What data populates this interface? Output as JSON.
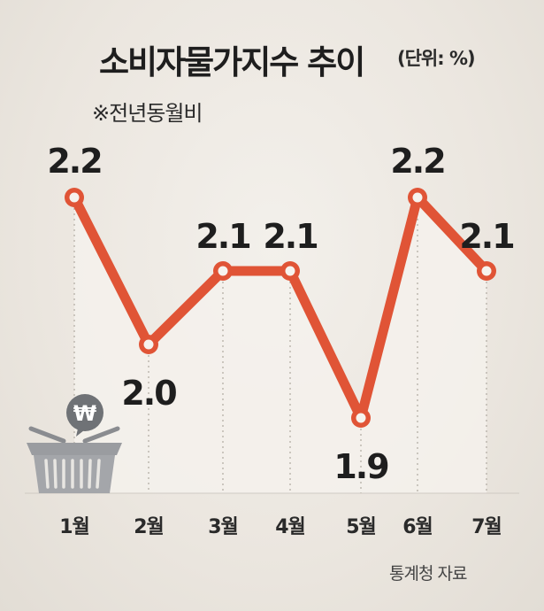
{
  "header": {
    "title": "소비자물가지수 추이",
    "unit": "(단위: %)",
    "subtitle": "※전년동월비"
  },
  "footer": {
    "source": "통계청 자료"
  },
  "colors": {
    "line": "#e05436",
    "text": "#1e1e1e",
    "basket": "#909296",
    "badge": "#6f7276"
  },
  "icons": [
    "won-badge-icon",
    "shopping-basket-icon"
  ],
  "chart_data": {
    "type": "line",
    "categories": [
      "1월",
      "2월",
      "3월",
      "4월",
      "5월",
      "6월",
      "7월"
    ],
    "values": [
      2.2,
      2.0,
      2.1,
      2.1,
      1.9,
      2.2,
      2.1
    ],
    "value_labels": [
      "2.2",
      "2.0",
      "2.1",
      "2.1",
      "1.9",
      "2.2",
      "2.1"
    ],
    "grid": false,
    "legend": "none"
  }
}
